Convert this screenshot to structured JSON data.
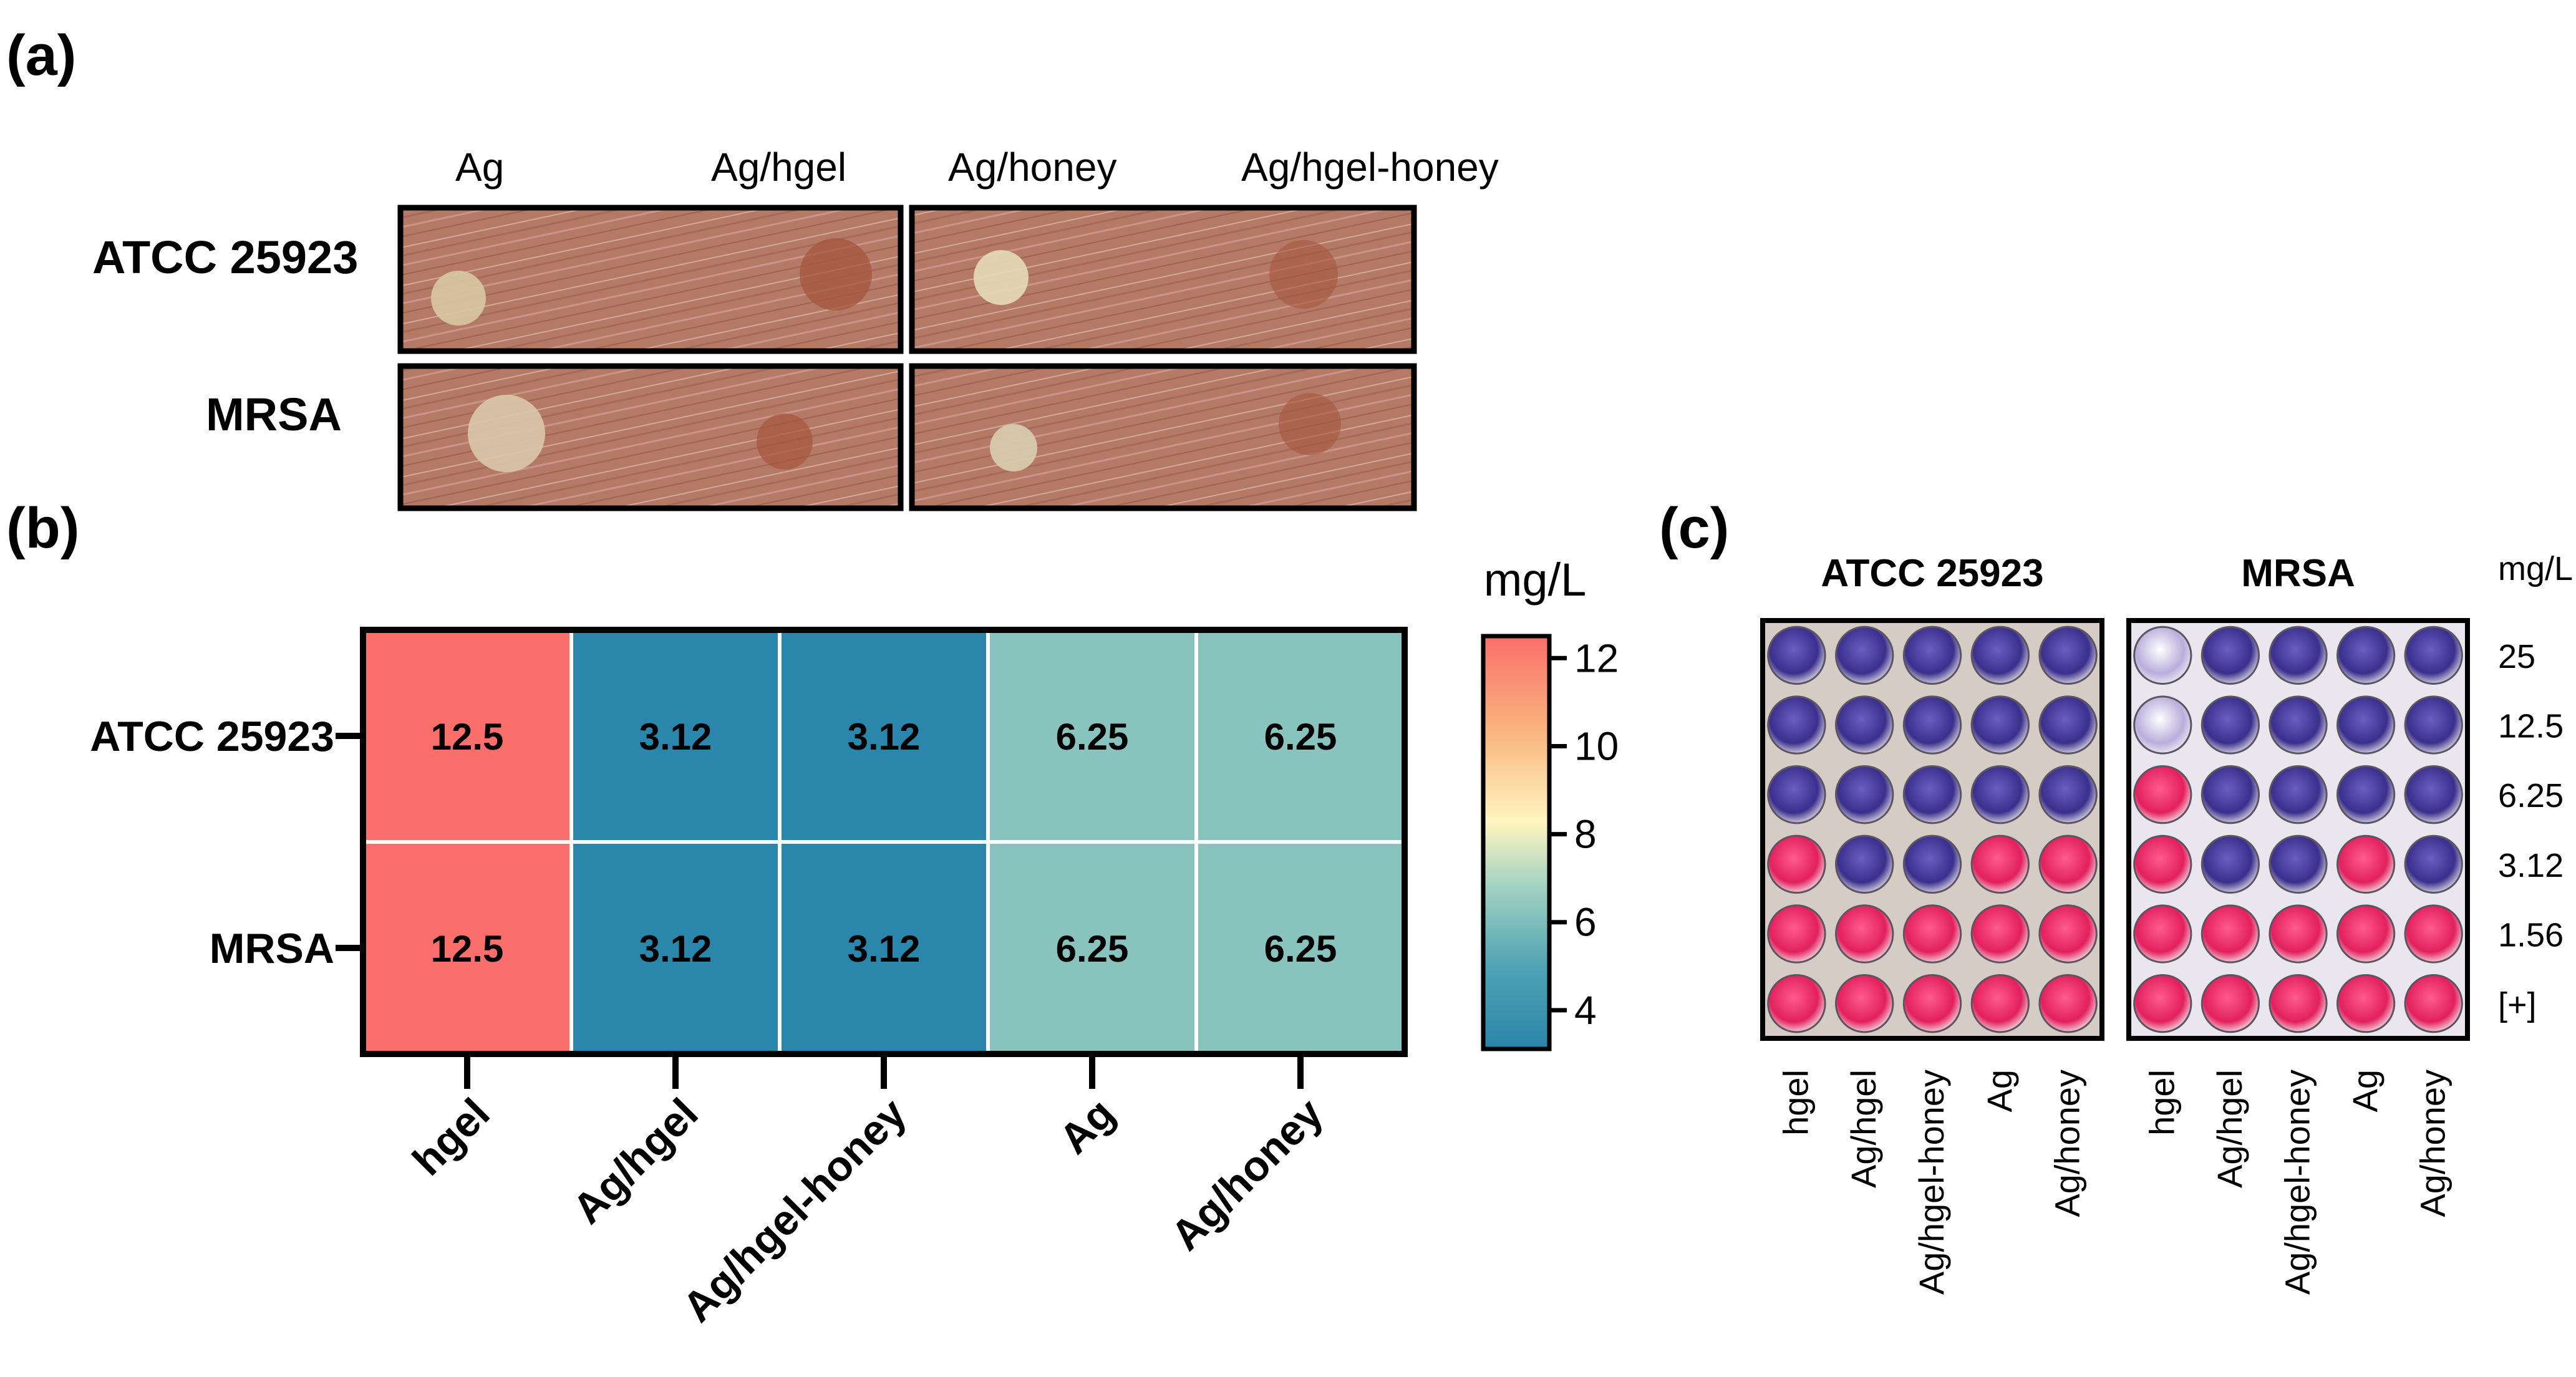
{
  "panels": {
    "a": {
      "label": "(a)",
      "columns": [
        "Ag",
        "Ag/hgel",
        "Ag/honey",
        "Ag/hgel-honey"
      ],
      "rows": [
        "ATCC 25923",
        "MRSA"
      ]
    },
    "b": {
      "label": "(b)"
    },
    "c": {
      "label": "(c)",
      "plates": [
        "ATCC 25923",
        "MRSA"
      ],
      "unit": "mg/L",
      "concentrations": [
        "25",
        "12.5",
        "6.25",
        "3.12",
        "1.56",
        "[+]"
      ],
      "columns": [
        "hgel",
        "Ag/hgel",
        "Ag/hgel-honey",
        "Ag",
        "Ag/honey"
      ]
    }
  },
  "chart_data": {
    "type": "heatmap",
    "title": "",
    "rows": [
      "ATCC 25923",
      "MRSA"
    ],
    "columns": [
      "hgel",
      "Ag/hgel",
      "Ag/hgel-honey",
      "Ag",
      "Ag/honey"
    ],
    "values": [
      [
        12.5,
        3.12,
        3.12,
        6.25,
        6.25
      ],
      [
        12.5,
        3.12,
        3.12,
        6.25,
        6.25
      ]
    ],
    "cell_labels": [
      [
        "12.5",
        "3.12",
        "3.12",
        "6.25",
        "6.25"
      ],
      [
        "12.5",
        "3.12",
        "3.12",
        "6.25",
        "6.25"
      ]
    ],
    "colorbar": {
      "label": "mg/L",
      "range": [
        3.12,
        12.5
      ],
      "ticks": [
        4,
        6,
        8,
        10,
        12
      ],
      "tick_labels": [
        "4",
        "6",
        "8",
        "10",
        "12"
      ],
      "colors": [
        "#2a86aa",
        "#4fa3b4",
        "#a6d3c3",
        "#fff5c0",
        "#f9b27c",
        "#fa6e6c"
      ]
    },
    "legend": "right",
    "grid": false
  },
  "colors": {
    "agar": "#b47a66",
    "plate_bg": "#d9cfc4",
    "well_blue": "#4a3c9a",
    "well_pink": "#e8336f"
  }
}
